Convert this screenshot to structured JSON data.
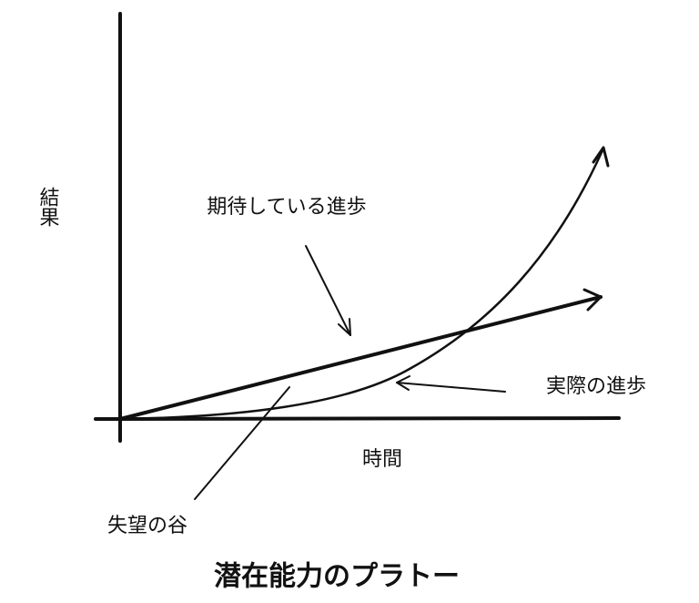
{
  "title": "潜在能力のプラトー",
  "axes": {
    "y_label": "結果",
    "x_label": "時間"
  },
  "annotations": {
    "expected": "期待している進歩",
    "actual": "実際の進歩",
    "valley": "失望の谷"
  }
}
